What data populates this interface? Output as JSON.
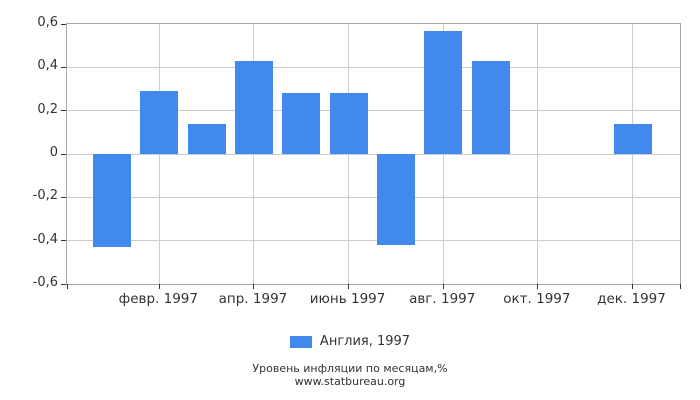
{
  "chart_data": {
    "type": "bar",
    "title": "",
    "months": [
      1,
      2,
      3,
      4,
      5,
      6,
      7,
      8,
      9,
      10,
      11,
      12
    ],
    "series": [
      {
        "name": "Англия, 1997",
        "values": [
          -0.43,
          0.29,
          0.14,
          0.43,
          0.28,
          0.28,
          -0.42,
          0.57,
          0.43,
          0,
          0,
          0.14
        ]
      }
    ],
    "xlabel": "",
    "ylabel": "",
    "ylim": [
      -0.6,
      0.6
    ],
    "y_ticks": [
      0.6,
      0.4,
      0.2,
      0,
      -0.2,
      -0.4,
      -0.6
    ],
    "y_tick_labels": [
      "0,6",
      "0,4",
      "0,2",
      "0",
      "-0,2",
      "-0,4",
      "-0,6"
    ],
    "x_tick_months": [
      2,
      4,
      6,
      8,
      10,
      12
    ],
    "x_tick_labels": [
      "февр. 1997",
      "апр. 1997",
      "июнь 1997",
      "авг. 1997",
      "окт. 1997",
      "дек. 1997"
    ],
    "grid": true,
    "legend_position": "bottom",
    "bar_color": "#4189EC",
    "grid_color": "#cccccc",
    "axis_border_color": "#a6a6a6",
    "text_color": "#333333"
  },
  "legend": {
    "label": "Англия, 1997"
  },
  "footer": {
    "line1": "Уровень инфляции по месяцам,%",
    "line2": "www.statbureau.org"
  }
}
